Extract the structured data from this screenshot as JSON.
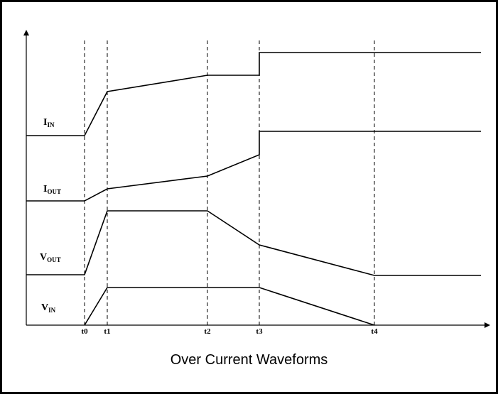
{
  "caption": "Over Current Waveforms",
  "time_markers": [
    "t0",
    "t1",
    "t2",
    "t3",
    "t4"
  ],
  "signals": [
    {
      "id": "i_in",
      "base": "I",
      "sub": "IN"
    },
    {
      "id": "i_out",
      "base": "I",
      "sub": "OUT"
    },
    {
      "id": "v_out",
      "base": "V",
      "sub": "OUT"
    },
    {
      "id": "v_in",
      "base": "V",
      "sub": "IN"
    }
  ]
}
